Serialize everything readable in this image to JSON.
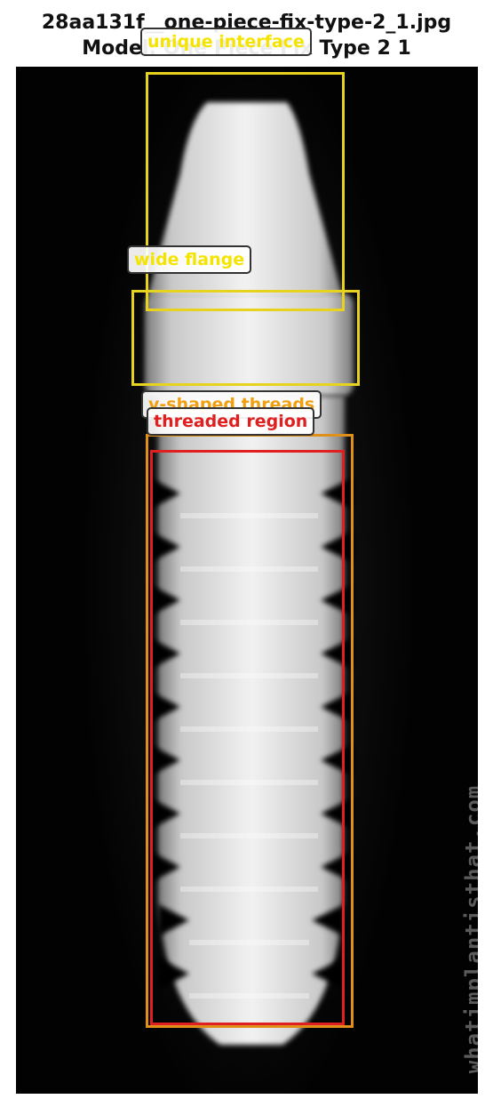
{
  "title": {
    "line1": "28aa131f__one-piece-fix-type-2_1.jpg",
    "line2": "Model: One Piece Fix Type 2 1"
  },
  "image": {
    "subject": "dental implant x-ray",
    "watermark": "whatimplantisthat.com"
  },
  "annotations": [
    {
      "id": "unique-interface",
      "label": "unique interface",
      "color": "#e6d21f",
      "label_color": "#f5e400"
    },
    {
      "id": "wide-flange",
      "label": "wide flange",
      "color": "#e6d21f",
      "label_color": "#f5e400"
    },
    {
      "id": "v-shaped-threads",
      "label": "v-shaped threads",
      "color": "#e0901a",
      "label_color": "#f0a010"
    },
    {
      "id": "threaded-region",
      "label": "threaded region",
      "color": "#e02020",
      "label_color": "#e02020"
    }
  ]
}
